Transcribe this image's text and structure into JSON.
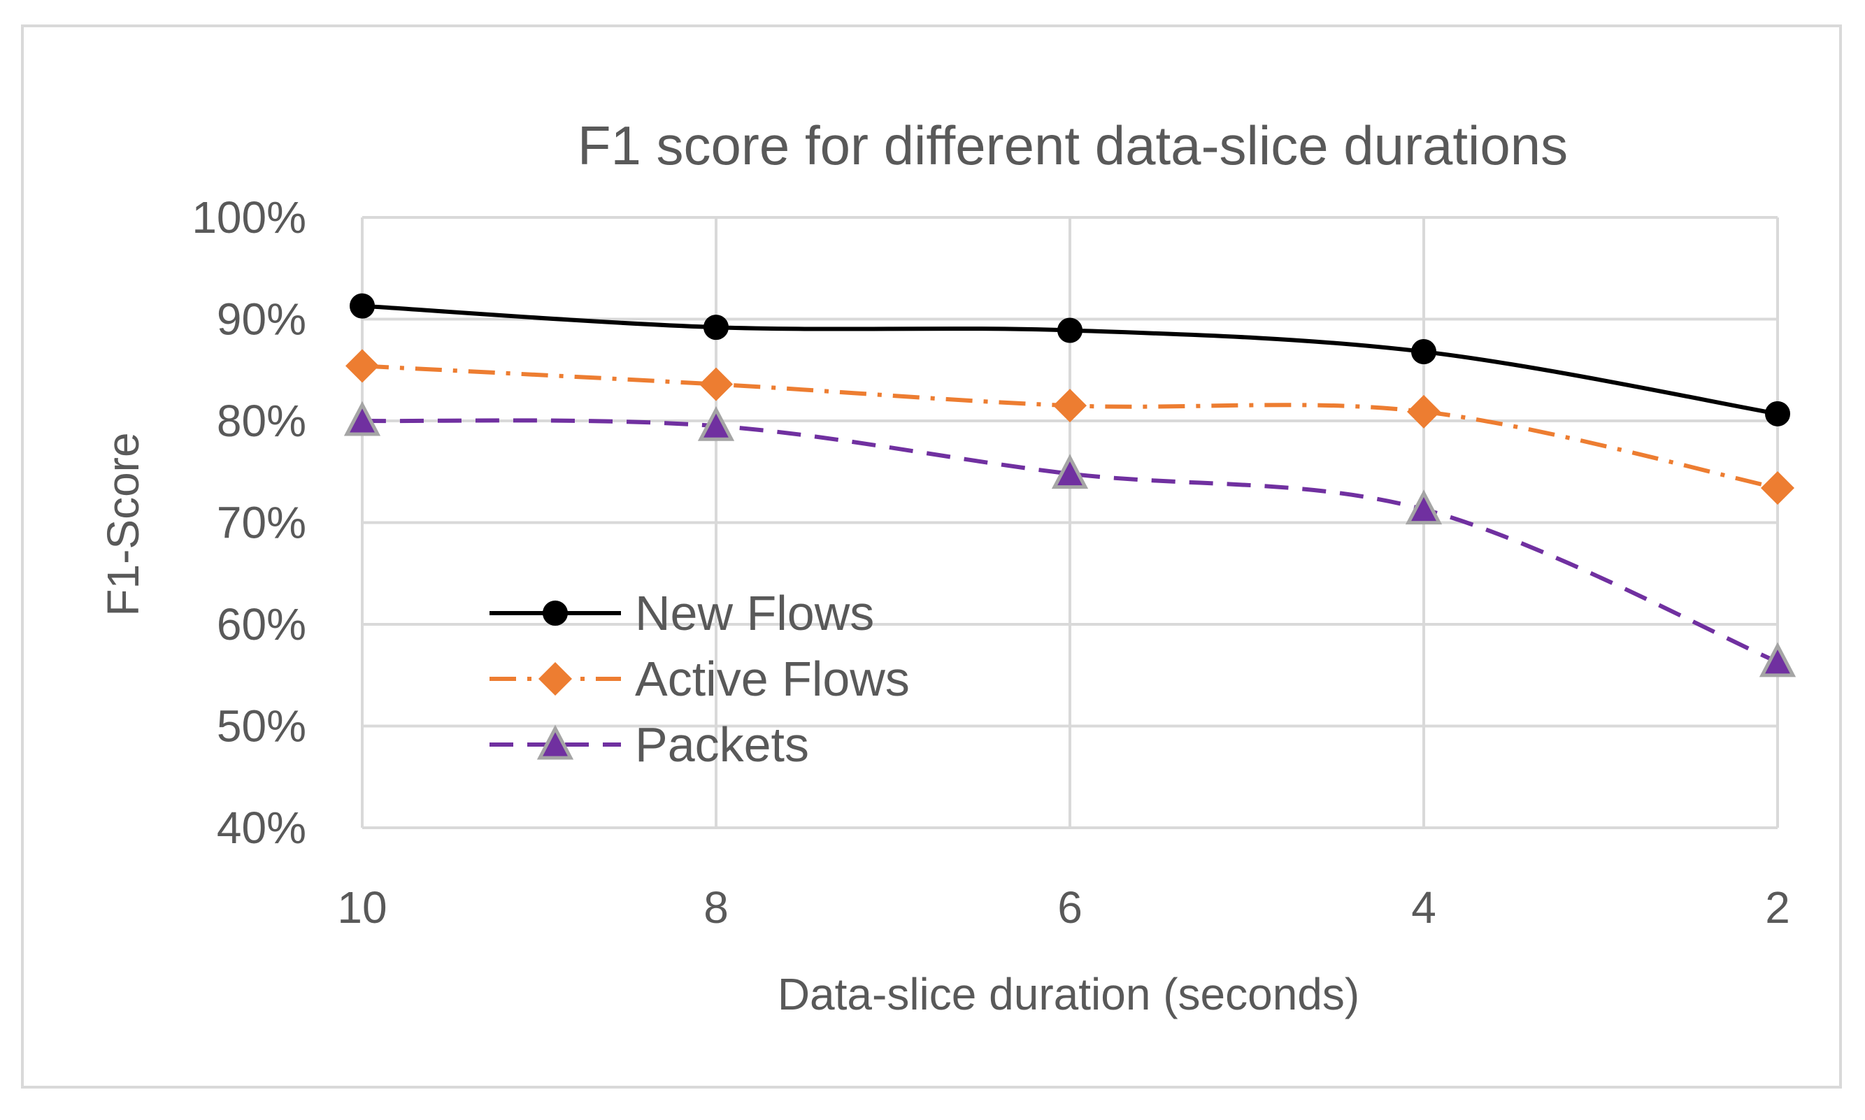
{
  "chart_data": {
    "type": "line",
    "title": "F1 score for different data-slice durations",
    "xlabel": "Data-slice duration (seconds)",
    "ylabel": "F1-Score",
    "categories": [
      "10",
      "8",
      "6",
      "4",
      "2"
    ],
    "ylim": [
      40,
      100
    ],
    "ytick_values": [
      40,
      50,
      60,
      70,
      80,
      90,
      100
    ],
    "ytick_labels": [
      "40%",
      "50%",
      "60%",
      "70%",
      "80%",
      "90%",
      "100%"
    ],
    "grid": true,
    "legend_position": "lower-left inside plot",
    "series": [
      {
        "name": "New Flows",
        "values": [
          91.3,
          89.2,
          88.9,
          86.8,
          80.7
        ],
        "color": "#000000",
        "marker": "circle",
        "line_style": "solid"
      },
      {
        "name": "Active Flows",
        "values": [
          85.4,
          83.6,
          81.5,
          80.9,
          73.4
        ],
        "color": "#ed7d31",
        "marker": "diamond",
        "line_style": "dash-dot"
      },
      {
        "name": "Packets",
        "values": [
          80.0,
          79.5,
          74.8,
          71.3,
          56.3
        ],
        "color": "#7030a0",
        "marker": "triangle",
        "line_style": "dashed"
      }
    ]
  }
}
